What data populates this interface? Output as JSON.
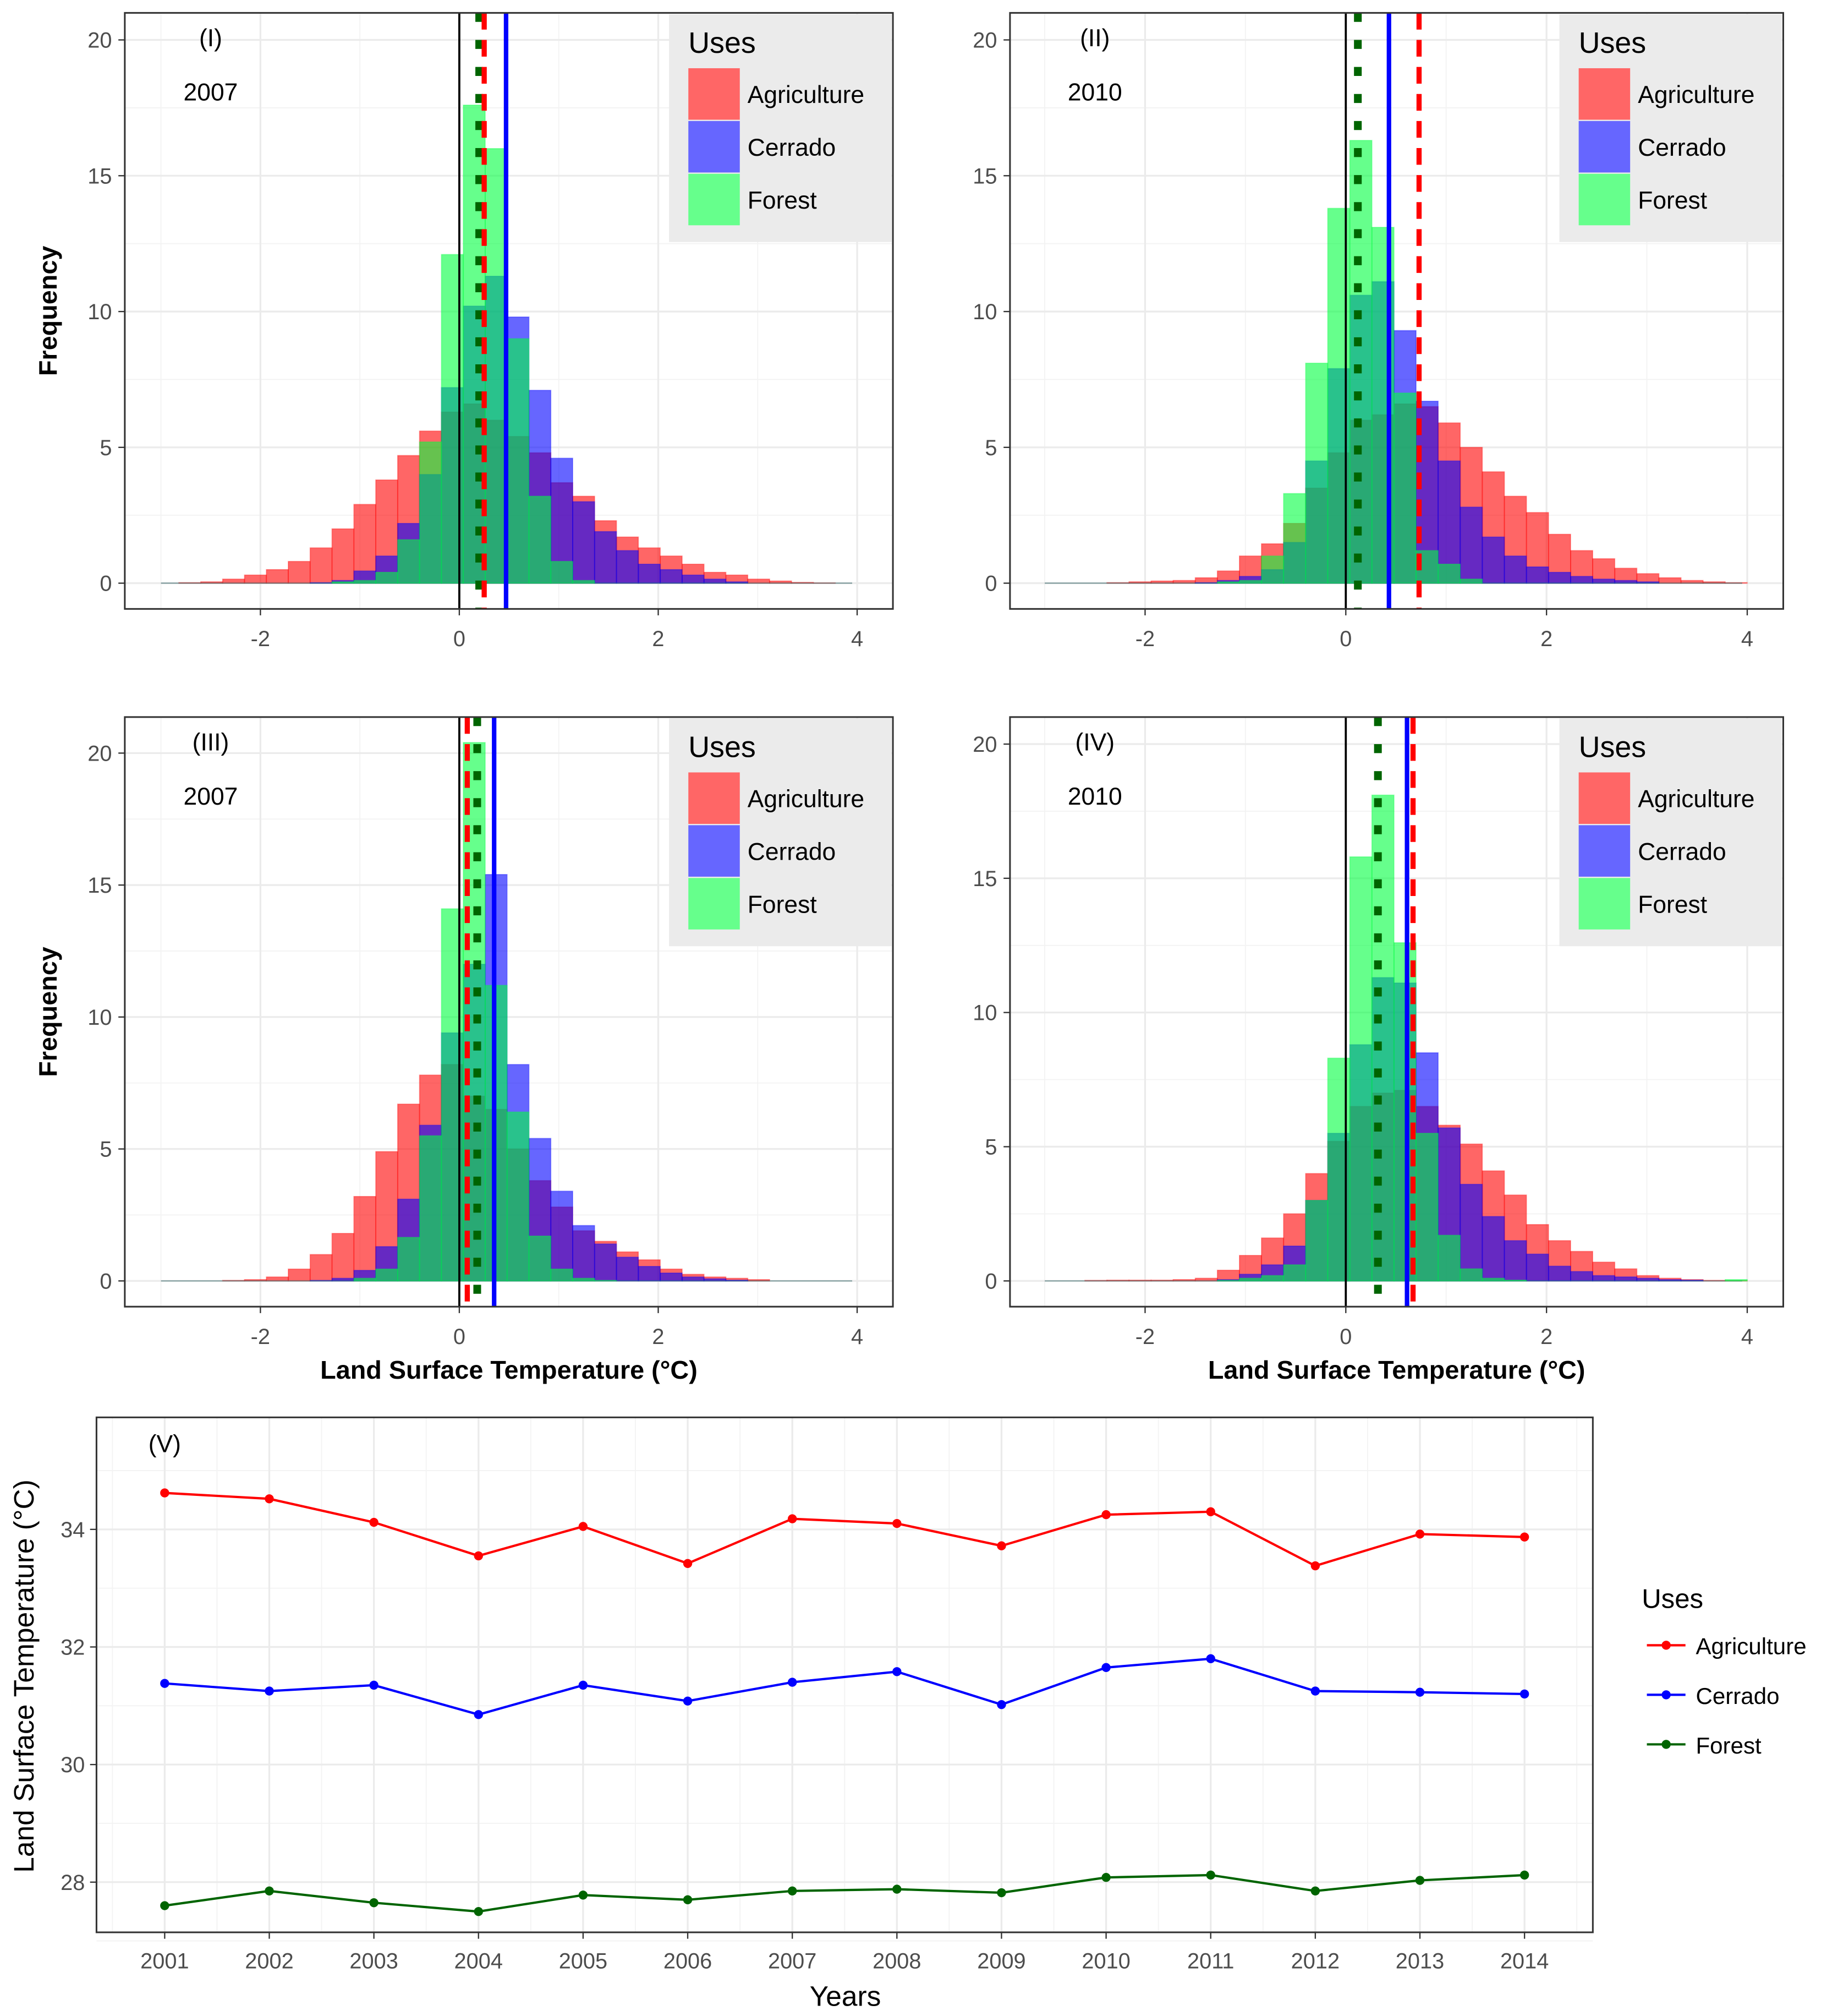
{
  "chart_data": [
    {
      "type": "histogram",
      "panel_label": "(I)",
      "year": "2007",
      "xlabel": "",
      "ylabel": "Frequency",
      "xlim": [
        -3,
        4
      ],
      "xticks": [
        "-2",
        "0",
        "2",
        "4"
      ],
      "yticks": [
        "0",
        "5",
        "10",
        "15",
        "20"
      ],
      "grid": true,
      "bin_start": -2.82,
      "bin_width": 0.22,
      "legend": {
        "title": "Uses",
        "position": "top-right",
        "entries": [
          "Agriculture",
          "Cerrado",
          "Forest"
        ]
      },
      "series": [
        {
          "name": "Agriculture",
          "color": "#ff0000",
          "values": [
            0.02,
            0.05,
            0.15,
            0.3,
            0.5,
            0.8,
            1.3,
            2.0,
            2.9,
            3.8,
            4.7,
            5.6,
            6.3,
            6.6,
            6.0,
            5.4,
            4.8,
            3.7,
            3.2,
            2.3,
            1.7,
            1.3,
            1.0,
            0.7,
            0.4,
            0.3,
            0.15,
            0.08,
            0.03,
            0.01,
            0
          ]
        },
        {
          "name": "Cerrado",
          "color": "#0000ff",
          "values": [
            0,
            0,
            0,
            0,
            0,
            0,
            0.02,
            0.1,
            0.45,
            1.0,
            2.2,
            4.0,
            7.2,
            10.2,
            11.3,
            9.8,
            7.1,
            4.6,
            3.0,
            1.9,
            1.2,
            0.7,
            0.5,
            0.3,
            0.15,
            0.05,
            0,
            0,
            0,
            0,
            0
          ]
        },
        {
          "name": "Forest",
          "color": "#00ff40",
          "values": [
            0,
            0,
            0,
            0,
            0,
            0,
            0,
            0.05,
            0.1,
            0.4,
            1.6,
            5.2,
            12.1,
            17.6,
            16.0,
            9.0,
            3.2,
            0.8,
            0.1,
            0,
            0,
            0,
            0,
            0,
            0,
            0,
            0,
            0,
            0,
            0,
            0
          ]
        }
      ],
      "vlines": [
        {
          "name": "zero",
          "value": 0,
          "color": "#000000",
          "style": "solid"
        },
        {
          "name": "Forest mean",
          "value": 0.2,
          "color": "#006400",
          "style": "dotted"
        },
        {
          "name": "Agriculture mean",
          "value": 0.25,
          "color": "#ff0000",
          "style": "dashed"
        },
        {
          "name": "Cerrado mean",
          "value": 0.47,
          "color": "#0000ff",
          "style": "solid-thick"
        }
      ]
    },
    {
      "type": "histogram",
      "panel_label": "(II)",
      "year": "2010",
      "xlabel": "",
      "ylabel": "",
      "xlim": [
        -3,
        4
      ],
      "xticks": [
        "-2",
        "0",
        "2",
        "4"
      ],
      "yticks": [
        "0",
        "5",
        "10",
        "15",
        "20"
      ],
      "grid": true,
      "bin_start": -2.82,
      "bin_width": 0.22,
      "legend": {
        "title": "Uses",
        "position": "top-right",
        "entries": [
          "Agriculture",
          "Cerrado",
          "Forest"
        ]
      },
      "series": [
        {
          "name": "Agriculture",
          "color": "#ff0000",
          "values": [
            0,
            0,
            0.02,
            0.05,
            0.08,
            0.1,
            0.2,
            0.45,
            1.0,
            1.45,
            2.2,
            3.5,
            4.8,
            6.0,
            6.2,
            6.6,
            6.5,
            5.9,
            5.0,
            4.1,
            3.2,
            2.6,
            1.8,
            1.2,
            0.9,
            0.55,
            0.35,
            0.2,
            0.1,
            0.05,
            0.02
          ]
        },
        {
          "name": "Cerrado",
          "color": "#0000ff",
          "values": [
            0,
            0,
            0,
            0,
            0,
            0,
            0.02,
            0.1,
            0.25,
            0.5,
            1.5,
            4.5,
            7.9,
            10.6,
            11.1,
            9.3,
            6.7,
            4.5,
            2.8,
            1.7,
            1.0,
            0.6,
            0.4,
            0.25,
            0.15,
            0.1,
            0.05,
            0,
            0,
            0,
            0
          ]
        },
        {
          "name": "Forest",
          "color": "#00ff40",
          "values": [
            0,
            0,
            0,
            0,
            0,
            0,
            0,
            0.05,
            0.1,
            1.0,
            3.3,
            8.1,
            13.8,
            16.3,
            13.1,
            7.0,
            1.2,
            0.7,
            0.15,
            0,
            0,
            0,
            0,
            0,
            0,
            0,
            0,
            0,
            0,
            0,
            0
          ]
        }
      ],
      "vlines": [
        {
          "name": "zero",
          "value": 0,
          "color": "#000000",
          "style": "solid"
        },
        {
          "name": "Forest mean",
          "value": 0.12,
          "color": "#006400",
          "style": "dotted"
        },
        {
          "name": "Cerrado mean",
          "value": 0.43,
          "color": "#0000ff",
          "style": "solid-thick"
        },
        {
          "name": "Agriculture mean",
          "value": 0.73,
          "color": "#ff0000",
          "style": "dashed"
        }
      ]
    },
    {
      "type": "histogram",
      "panel_label": "(III)",
      "year": "2007",
      "xlabel": "Land Surface Temperature (°C)",
      "ylabel": "Frequency",
      "xlim": [
        -3,
        4
      ],
      "xticks": [
        "-2",
        "0",
        "2",
        "4"
      ],
      "yticks": [
        "0",
        "5",
        "10",
        "15",
        "20"
      ],
      "grid": true,
      "bin_start": -2.82,
      "bin_width": 0.22,
      "legend": {
        "title": "Uses",
        "position": "top-right",
        "entries": [
          "Agriculture",
          "Cerrado",
          "Forest"
        ]
      },
      "series": [
        {
          "name": "Agriculture",
          "color": "#ff0000",
          "values": [
            0,
            0,
            0.02,
            0.05,
            0.15,
            0.45,
            1.0,
            1.8,
            3.2,
            4.9,
            6.7,
            7.8,
            8.2,
            7.0,
            6.5,
            5.0,
            3.8,
            2.8,
            1.9,
            1.5,
            1.1,
            0.8,
            0.45,
            0.25,
            0.15,
            0.1,
            0.05,
            0,
            0,
            0,
            0
          ]
        },
        {
          "name": "Cerrado",
          "color": "#0000ff",
          "values": [
            0,
            0,
            0,
            0,
            0,
            0,
            0.02,
            0.1,
            0.4,
            1.3,
            3.1,
            5.9,
            9.4,
            12.0,
            15.4,
            8.2,
            5.4,
            3.4,
            2.1,
            1.4,
            0.9,
            0.55,
            0.3,
            0.15,
            0.08,
            0.03,
            0,
            0,
            0,
            0,
            0
          ]
        },
        {
          "name": "Forest",
          "color": "#00ff40",
          "values": [
            0,
            0,
            0,
            0,
            0,
            0,
            0,
            0,
            0.1,
            0.45,
            1.65,
            5.5,
            14.1,
            20.4,
            11.2,
            6.4,
            1.7,
            0.45,
            0.1,
            0.02,
            0,
            0,
            0,
            0,
            0,
            0,
            0,
            0,
            0,
            0,
            0
          ]
        }
      ],
      "vlines": [
        {
          "name": "zero",
          "value": 0,
          "color": "#000000",
          "style": "solid"
        },
        {
          "name": "Agriculture mean",
          "value": 0.08,
          "color": "#ff0000",
          "style": "dashed"
        },
        {
          "name": "Forest mean",
          "value": 0.18,
          "color": "#006400",
          "style": "dotted"
        },
        {
          "name": "Cerrado mean",
          "value": 0.35,
          "color": "#0000ff",
          "style": "solid-thick"
        }
      ]
    },
    {
      "type": "histogram",
      "panel_label": "(IV)",
      "year": "2010",
      "xlabel": "Land Surface Temperature (°C)",
      "ylabel": "",
      "xlim": [
        -3,
        4
      ],
      "xticks": [
        "-2",
        "0",
        "2",
        "4"
      ],
      "yticks": [
        "0",
        "5",
        "10",
        "15",
        "20"
      ],
      "grid": true,
      "bin_start": -2.82,
      "bin_width": 0.22,
      "legend": {
        "title": "Uses",
        "position": "top-right",
        "entries": [
          "Agriculture",
          "Cerrado",
          "Forest"
        ]
      },
      "series": [
        {
          "name": "Agriculture",
          "color": "#ff0000",
          "values": [
            0,
            0.02,
            0.03,
            0.03,
            0.03,
            0.05,
            0.1,
            0.4,
            0.95,
            1.6,
            2.5,
            4.0,
            5.2,
            6.5,
            7.0,
            7.1,
            6.5,
            5.8,
            5.1,
            4.1,
            3.2,
            2.1,
            1.5,
            1.1,
            0.7,
            0.45,
            0.2,
            0.1,
            0.05,
            0.02,
            0.01
          ]
        },
        {
          "name": "Cerrado",
          "color": "#0000ff",
          "values": [
            0,
            0,
            0,
            0,
            0,
            0,
            0,
            0.05,
            0.25,
            0.6,
            1.3,
            3.0,
            5.5,
            8.8,
            11.3,
            11.1,
            8.5,
            5.7,
            3.6,
            2.4,
            1.5,
            1.0,
            0.55,
            0.35,
            0.2,
            0.15,
            0.1,
            0.05,
            0.03,
            0,
            0
          ]
        },
        {
          "name": "Forest",
          "color": "#00ff40",
          "values": [
            0,
            0,
            0,
            0,
            0,
            0,
            0,
            0.02,
            0.1,
            0.2,
            0.6,
            3.0,
            8.3,
            15.8,
            18.1,
            12.6,
            5.5,
            1.7,
            0.45,
            0.1,
            0.03,
            0,
            0,
            0,
            0,
            0,
            0,
            0,
            0,
            0,
            0.05
          ]
        }
      ],
      "vlines": [
        {
          "name": "zero",
          "value": 0,
          "color": "#000000",
          "style": "solid"
        },
        {
          "name": "Forest mean",
          "value": 0.32,
          "color": "#006400",
          "style": "dotted"
        },
        {
          "name": "Cerrado mean",
          "value": 0.61,
          "color": "#0000ff",
          "style": "solid-thick"
        },
        {
          "name": "Agriculture mean",
          "value": 0.67,
          "color": "#ff0000",
          "style": "dashed"
        }
      ]
    },
    {
      "type": "line",
      "panel_label": "(V)",
      "xlabel": "Years",
      "ylabel": "Land Surface Temperature (°C)",
      "categories": [
        "2001",
        "2002",
        "2003",
        "2004",
        "2005",
        "2006",
        "2007",
        "2008",
        "2009",
        "2010",
        "2011",
        "2012",
        "2013",
        "2014"
      ],
      "yticks": [
        "28",
        "30",
        "32",
        "34"
      ],
      "ylim": [
        27.2,
        35.7
      ],
      "grid": true,
      "legend": {
        "title": "Uses",
        "position": "right",
        "entries": [
          "Agriculture",
          "Cerrado",
          "Forest"
        ]
      },
      "series": [
        {
          "name": "Agriculture",
          "color": "#ff0000",
          "values": [
            34.62,
            34.52,
            34.12,
            33.55,
            34.05,
            33.42,
            34.18,
            34.1,
            33.72,
            34.25,
            34.3,
            33.38,
            33.92,
            33.87
          ]
        },
        {
          "name": "Cerrado",
          "color": "#0000ff",
          "values": [
            31.38,
            31.25,
            31.35,
            30.85,
            31.35,
            31.08,
            31.4,
            31.58,
            31.02,
            31.65,
            31.8,
            31.25,
            31.23,
            31.2
          ]
        },
        {
          "name": "Forest",
          "color": "#006400",
          "values": [
            27.6,
            27.85,
            27.65,
            27.5,
            27.78,
            27.7,
            27.85,
            27.88,
            27.82,
            28.08,
            28.12,
            27.85,
            28.03,
            28.12
          ]
        }
      ]
    }
  ]
}
